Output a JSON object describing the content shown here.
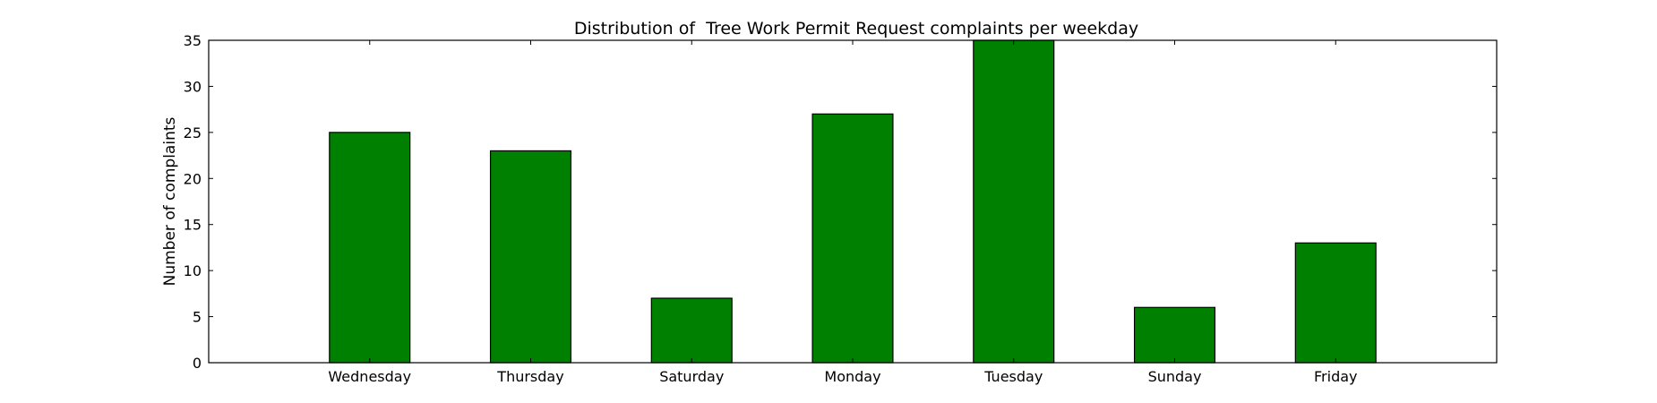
{
  "chart_data": {
    "type": "bar",
    "title": "Distribution of  Tree Work Permit Request complaints per weekday",
    "xlabel": "",
    "ylabel": "Number of complaints",
    "categories": [
      "Wednesday",
      "Thursday",
      "Saturday",
      "Monday",
      "Tuesday",
      "Sunday",
      "Friday"
    ],
    "values": [
      25,
      23,
      7,
      27,
      35,
      6,
      13
    ],
    "ylim": [
      0,
      35
    ],
    "yticks": [
      0,
      5,
      10,
      15,
      20,
      25,
      30,
      35
    ],
    "bar_color": "#008000",
    "edge_color": "#000000",
    "grid": false,
    "legend": "none"
  }
}
